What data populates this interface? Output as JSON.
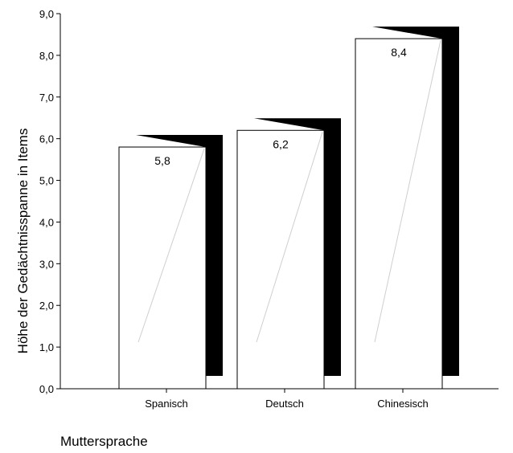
{
  "chart_data": {
    "type": "bar",
    "style": "3d",
    "categories": [
      "Spanisch",
      "Deutsch",
      "Chinesisch"
    ],
    "values": [
      5.8,
      6.2,
      8.4
    ],
    "data_labels": [
      "5,8",
      "6,2",
      "8,4"
    ],
    "ylabel": "Höhe der Gedächtnisspanne in Items",
    "xlabel": "Muttersprache",
    "ylim": [
      0,
      9
    ],
    "yticks": [
      "0,0",
      "1,0",
      "2,0",
      "3,0",
      "4,0",
      "5,0",
      "6,0",
      "7,0",
      "8,0",
      "9,0"
    ],
    "grid": false,
    "legend": "none",
    "colors": {
      "bar_face": "#ffffff",
      "bar_shadow": "#000000",
      "axis": "#000000"
    }
  }
}
